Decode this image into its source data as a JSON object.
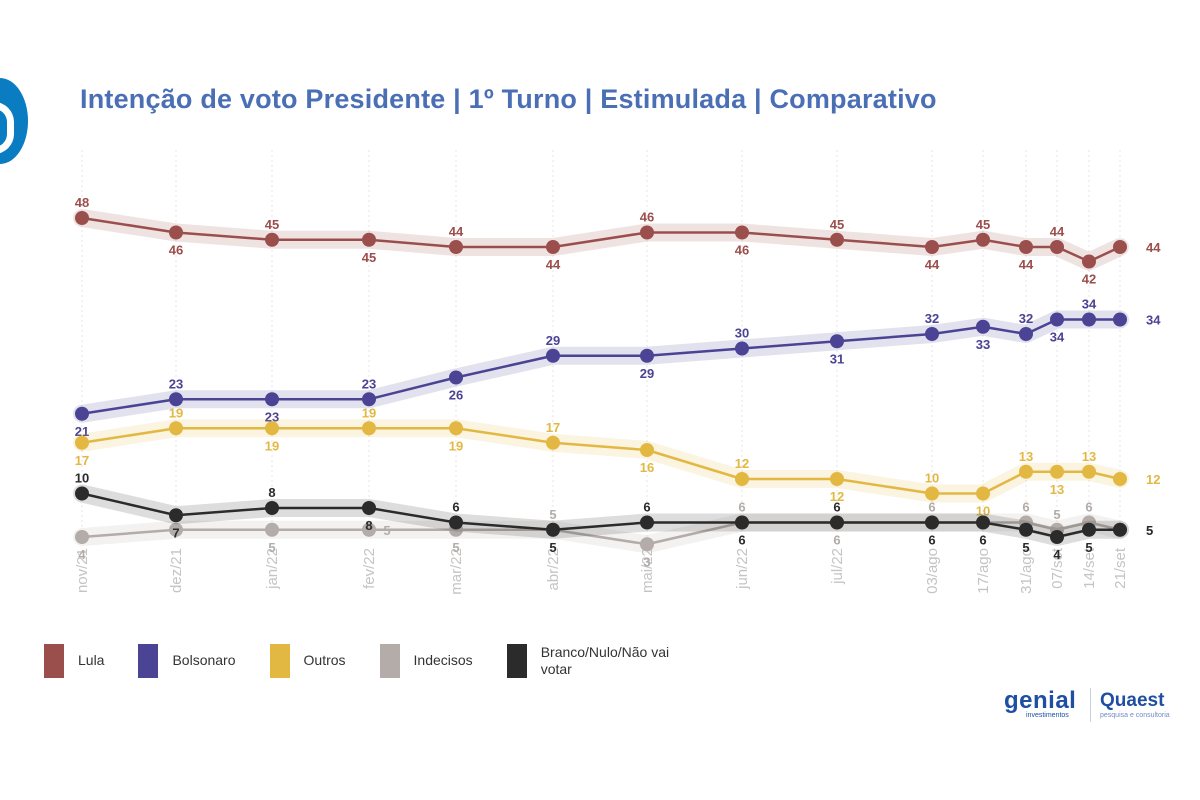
{
  "title": "Intenção de voto Presidente | 1º Turno | Estimulada | Comparativo",
  "brands": {
    "genial": "genial",
    "genial_sub": "investimentos",
    "quaest": "Quaest",
    "quaest_sub": "pesquisa e consultoria"
  },
  "chart_data": {
    "type": "line",
    "title": "Intenção de voto Presidente | 1º Turno | Estimulada | Comparativo",
    "xlabel": "",
    "ylabel": "",
    "ylim": [
      0,
      50
    ],
    "grid": "vertical",
    "legend": "bottom-left",
    "categories": [
      "nov/21",
      "dez/21",
      "jan/22",
      "fev/22",
      "mar/22",
      "abr/22",
      "mai/22",
      "jun/22",
      "jul/22",
      "03/ago",
      "17/ago",
      "31/ago",
      "07/set",
      "14/set",
      "21/set"
    ],
    "series": [
      {
        "name": "Lula",
        "color": "#9b4f4c",
        "values": [
          48,
          46,
          45,
          45,
          44,
          44,
          46,
          46,
          45,
          44,
          45,
          44,
          44,
          42,
          44
        ]
      },
      {
        "name": "Bolsonaro",
        "color": "#4b4394",
        "values": [
          21,
          23,
          23,
          23,
          26,
          29,
          29,
          30,
          31,
          32,
          33,
          32,
          34,
          34,
          34
        ]
      },
      {
        "name": "Outros",
        "color": "#e3b842",
        "values": [
          17,
          19,
          19,
          19,
          19,
          17,
          16,
          12,
          12,
          10,
          10,
          13,
          13,
          13,
          12
        ]
      },
      {
        "name": "Indecisos",
        "color": "#b3aca8",
        "values": [
          4,
          5,
          5,
          5,
          5,
          5,
          3,
          6,
          6,
          6,
          6,
          6,
          5,
          6,
          5
        ]
      },
      {
        "name": "Branco/Nulo/Não vai votar",
        "color": "#2b2b2b",
        "values": [
          10,
          7,
          8,
          8,
          6,
          5,
          6,
          6,
          6,
          6,
          6,
          5,
          4,
          5,
          5
        ]
      }
    ]
  }
}
